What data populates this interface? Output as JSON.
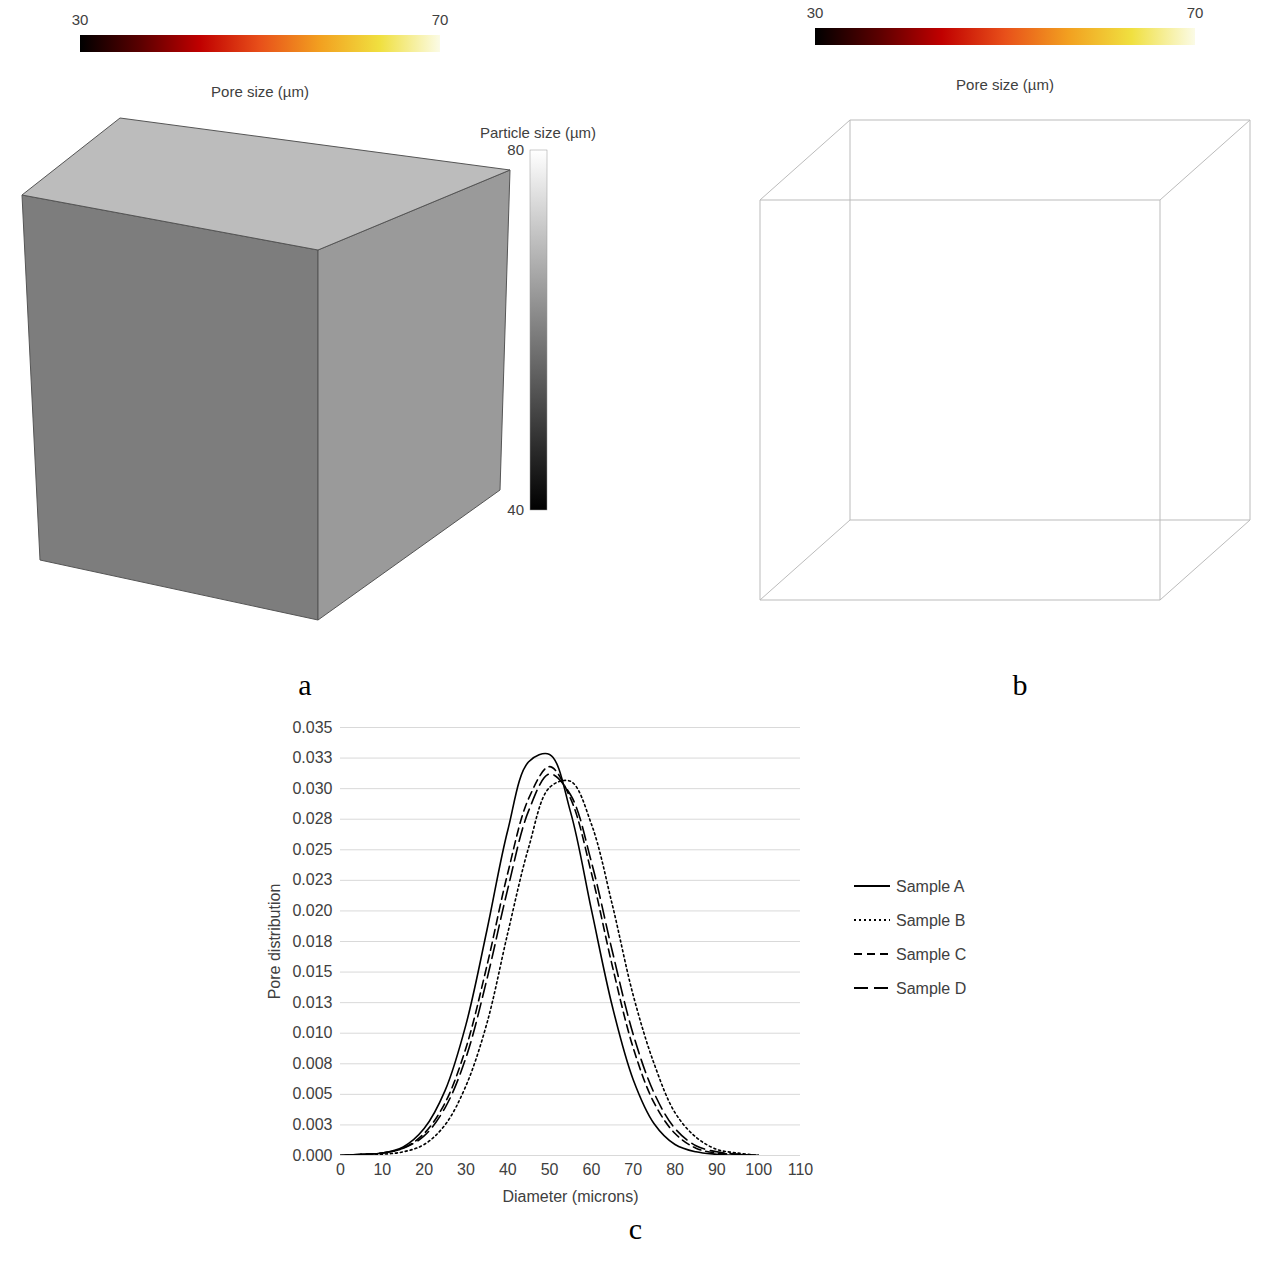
{
  "panels": [
    {
      "panel": "a",
      "pore_colorbar": {
        "title": "Pore size (µm)",
        "range": [
          30,
          70
        ],
        "ticks": [
          30,
          70
        ]
      },
      "particle_colorbar": {
        "title": "Particle size (µm)",
        "range": [
          40,
          80
        ],
        "ticks": [
          40,
          80
        ]
      }
    },
    {
      "panel": "b",
      "pore_colorbar": {
        "title": "Pore size (µm)",
        "range": [
          30,
          70
        ],
        "ticks": [
          30,
          70
        ]
      }
    }
  ],
  "chart_data": {
    "type": "line",
    "panel": "c",
    "xlabel": "Diameter (microns)",
    "ylabel": "Pore distribution",
    "x": [
      0,
      5,
      10,
      15,
      20,
      25,
      30,
      35,
      40,
      45,
      50,
      55,
      60,
      65,
      70,
      75,
      80,
      85,
      90,
      95,
      100
    ],
    "series": [
      {
        "name": "Sample A",
        "color": "#000000",
        "line_style": "solid",
        "values": [
          0.0,
          0.0001,
          0.0002,
          0.0007,
          0.0022,
          0.0053,
          0.0107,
          0.0184,
          0.0266,
          0.0322,
          0.0328,
          0.0281,
          0.0201,
          0.0122,
          0.0062,
          0.0026,
          0.0009,
          0.0003,
          0.0001,
          0.0,
          0.0
        ]
      },
      {
        "name": "Sample B",
        "color": "#000000",
        "line_style": "dotted",
        "values": [
          0.0,
          0.0,
          0.0001,
          0.0003,
          0.0009,
          0.0025,
          0.0057,
          0.0108,
          0.0182,
          0.0252,
          0.0301,
          0.0306,
          0.0271,
          0.0205,
          0.0131,
          0.0075,
          0.0035,
          0.0015,
          0.0005,
          0.0002,
          0.0
        ]
      },
      {
        "name": "Sample C",
        "color": "#000000",
        "line_style": "dashed",
        "values": [
          0.0,
          0.0001,
          0.0002,
          0.0006,
          0.0018,
          0.0043,
          0.0088,
          0.0155,
          0.0231,
          0.0292,
          0.0318,
          0.0292,
          0.0231,
          0.0155,
          0.0088,
          0.0043,
          0.0018,
          0.0006,
          0.0002,
          0.0001,
          0.0
        ]
      },
      {
        "name": "Sample D",
        "color": "#000000",
        "line_style": "longdash",
        "values": [
          0.0,
          0.0001,
          0.0002,
          0.0006,
          0.0016,
          0.0039,
          0.008,
          0.0144,
          0.0218,
          0.0282,
          0.0312,
          0.0295,
          0.024,
          0.0167,
          0.0099,
          0.0051,
          0.0022,
          0.0008,
          0.0003,
          0.0001,
          0.0
        ]
      }
    ],
    "xlim": [
      0,
      110
    ],
    "xticks": [
      0,
      10,
      20,
      30,
      40,
      50,
      60,
      70,
      80,
      90,
      100,
      110
    ],
    "ylim": [
      0,
      0.035
    ],
    "yticks": [
      {
        "value": 0,
        "label": "0.000"
      },
      {
        "value": 0.0025,
        "label": "0.003"
      },
      {
        "value": 0.005,
        "label": "0.005"
      },
      {
        "value": 0.0075,
        "label": "0.008"
      },
      {
        "value": 0.01,
        "label": "0.010"
      },
      {
        "value": 0.0125,
        "label": "0.013"
      },
      {
        "value": 0.015,
        "label": "0.015"
      },
      {
        "value": 0.0175,
        "label": "0.018"
      },
      {
        "value": 0.02,
        "label": "0.020"
      },
      {
        "value": 0.0225,
        "label": "0.023"
      },
      {
        "value": 0.025,
        "label": "0.025"
      },
      {
        "value": 0.0275,
        "label": "0.028"
      },
      {
        "value": 0.03,
        "label": "0.030"
      },
      {
        "value": 0.0325,
        "label": "0.033"
      },
      {
        "value": 0.035,
        "label": "0.035"
      }
    ],
    "grid": true,
    "legend": "right"
  }
}
